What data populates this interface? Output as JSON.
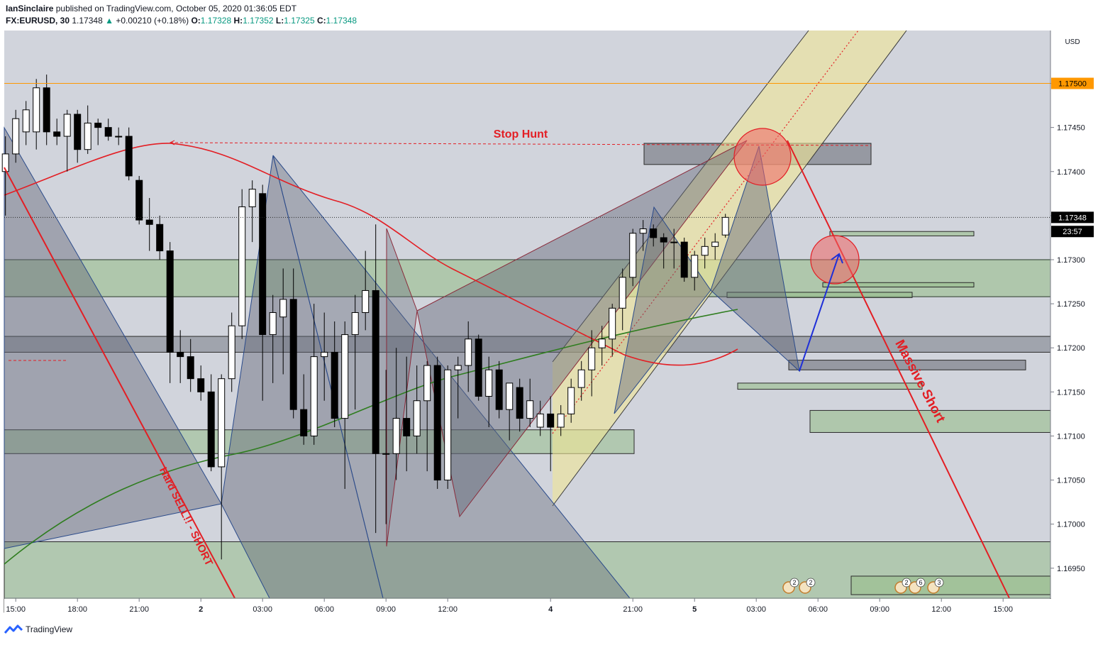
{
  "header": {
    "author": "IanSinclaire",
    "published": "published on TradingView.com, October 05, 2020 01:36:05 EDT"
  },
  "legend": {
    "symbol": "FX:EURUSD, 30",
    "last": "1.17348",
    "arrow": "▲",
    "change": "+0.00210 (+0.18%)",
    "o_label": "O:",
    "o": "1.17328",
    "h_label": "H:",
    "h": "1.17352",
    "l_label": "L:",
    "l": "1.17325",
    "c_label": "C:",
    "c": "1.17348"
  },
  "footer": {
    "brand": "TradingView",
    "logo_icon": "tradingview-logo-icon"
  },
  "colors": {
    "up": "#ffffff",
    "down": "#000000",
    "bg": "#d1d4dc",
    "red": "#e31e24",
    "orange": "#ff9800",
    "accent": "#089981"
  },
  "chart_data": {
    "type": "candlestick",
    "title": "",
    "currency": "USD",
    "ylim": [
      1.16916,
      1.1756
    ],
    "y_ticks": [
      "1.16950",
      "1.17000",
      "1.17050",
      "1.17100",
      "1.17150",
      "1.17200",
      "1.17250",
      "1.17300",
      "1.17350",
      "1.17400",
      "1.17450",
      "1.17500"
    ],
    "x_ticks": [
      {
        "label": "15:00",
        "bar": 1
      },
      {
        "label": "18:00",
        "bar": 7
      },
      {
        "label": "21:00",
        "bar": 13
      },
      {
        "label": "2",
        "bar": 19
      },
      {
        "label": "03:00",
        "bar": 25
      },
      {
        "label": "06:00",
        "bar": 31
      },
      {
        "label": "09:00",
        "bar": 37
      },
      {
        "label": "12:00",
        "bar": 43
      },
      {
        "label": "4",
        "bar": 53
      },
      {
        "label": "21:00",
        "bar": 61
      },
      {
        "label": "5",
        "bar": 67
      },
      {
        "label": "03:00",
        "bar": 73
      },
      {
        "label": "06:00",
        "bar": 79
      },
      {
        "label": "09:00",
        "bar": 85
      },
      {
        "label": "12:00",
        "bar": 91
      },
      {
        "label": "15:00",
        "bar": 97
      }
    ],
    "price_labels": [
      {
        "text": "1.17500",
        "price": 1.175,
        "bg": "#ff9800",
        "color": "#000000"
      },
      {
        "text": "1.17348",
        "price": 1.17348,
        "bg": "#000000",
        "color": "#ffffff"
      },
      {
        "text": "23:57",
        "price": 1.17332,
        "bg": "#000000",
        "color": "#ffffff"
      }
    ],
    "candles": [
      {
        "o": 1.174,
        "h": 1.1744,
        "l": 1.1735,
        "c": 1.1742
      },
      {
        "o": 1.1742,
        "h": 1.1747,
        "l": 1.1741,
        "c": 1.1746
      },
      {
        "o": 1.17445,
        "h": 1.1748,
        "l": 1.1743,
        "c": 1.1747
      },
      {
        "o": 1.17445,
        "h": 1.17505,
        "l": 1.17425,
        "c": 1.17495
      },
      {
        "o": 1.17495,
        "h": 1.1751,
        "l": 1.1743,
        "c": 1.17445
      },
      {
        "o": 1.17445,
        "h": 1.1746,
        "l": 1.1743,
        "c": 1.1744
      },
      {
        "o": 1.1744,
        "h": 1.1747,
        "l": 1.174,
        "c": 1.17465
      },
      {
        "o": 1.17465,
        "h": 1.1747,
        "l": 1.1741,
        "c": 1.17425
      },
      {
        "o": 1.17425,
        "h": 1.17475,
        "l": 1.1742,
        "c": 1.17455
      },
      {
        "o": 1.17455,
        "h": 1.1746,
        "l": 1.1743,
        "c": 1.1745
      },
      {
        "o": 1.1745,
        "h": 1.1746,
        "l": 1.17435,
        "c": 1.1744
      },
      {
        "o": 1.1744,
        "h": 1.1745,
        "l": 1.1743,
        "c": 1.1744
      },
      {
        "o": 1.1744,
        "h": 1.1745,
        "l": 1.1739,
        "c": 1.17395
      },
      {
        "o": 1.1739,
        "h": 1.17395,
        "l": 1.1734,
        "c": 1.17345
      },
      {
        "o": 1.17345,
        "h": 1.1737,
        "l": 1.1731,
        "c": 1.1734
      },
      {
        "o": 1.1734,
        "h": 1.1735,
        "l": 1.173,
        "c": 1.1731
      },
      {
        "o": 1.1731,
        "h": 1.1732,
        "l": 1.1716,
        "c": 1.17195
      },
      {
        "o": 1.17195,
        "h": 1.1722,
        "l": 1.1716,
        "c": 1.1719
      },
      {
        "o": 1.1719,
        "h": 1.1721,
        "l": 1.1715,
        "c": 1.17165
      },
      {
        "o": 1.17165,
        "h": 1.1718,
        "l": 1.1714,
        "c": 1.1715
      },
      {
        "o": 1.1715,
        "h": 1.1717,
        "l": 1.1706,
        "c": 1.17065
      },
      {
        "o": 1.17065,
        "h": 1.1717,
        "l": 1.1696,
        "c": 1.17165
      },
      {
        "o": 1.17165,
        "h": 1.1724,
        "l": 1.1715,
        "c": 1.17225
      },
      {
        "o": 1.17225,
        "h": 1.1738,
        "l": 1.1721,
        "c": 1.1736
      },
      {
        "o": 1.1736,
        "h": 1.1739,
        "l": 1.1732,
        "c": 1.1738
      },
      {
        "o": 1.17375,
        "h": 1.17385,
        "l": 1.1714,
        "c": 1.17215
      },
      {
        "o": 1.17215,
        "h": 1.1726,
        "l": 1.1716,
        "c": 1.1724
      },
      {
        "o": 1.17235,
        "h": 1.1729,
        "l": 1.1717,
        "c": 1.17255
      },
      {
        "o": 1.17255,
        "h": 1.1729,
        "l": 1.1712,
        "c": 1.1713
      },
      {
        "o": 1.1713,
        "h": 1.1717,
        "l": 1.1709,
        "c": 1.171
      },
      {
        "o": 1.171,
        "h": 1.1725,
        "l": 1.1709,
        "c": 1.1719
      },
      {
        "o": 1.1719,
        "h": 1.1724,
        "l": 1.1714,
        "c": 1.17195
      },
      {
        "o": 1.17195,
        "h": 1.1723,
        "l": 1.1711,
        "c": 1.1712
      },
      {
        "o": 1.1712,
        "h": 1.1723,
        "l": 1.1704,
        "c": 1.17215
      },
      {
        "o": 1.17215,
        "h": 1.1726,
        "l": 1.1713,
        "c": 1.1724
      },
      {
        "o": 1.1724,
        "h": 1.1731,
        "l": 1.1722,
        "c": 1.17265
      },
      {
        "o": 1.17265,
        "h": 1.1734,
        "l": 1.1699,
        "c": 1.1708
      },
      {
        "o": 1.1708,
        "h": 1.17175,
        "l": 1.17,
        "c": 1.1708
      },
      {
        "o": 1.1708,
        "h": 1.172,
        "l": 1.1705,
        "c": 1.1712
      },
      {
        "o": 1.1712,
        "h": 1.1719,
        "l": 1.1706,
        "c": 1.171
      },
      {
        "o": 1.171,
        "h": 1.1718,
        "l": 1.1708,
        "c": 1.1714
      },
      {
        "o": 1.1714,
        "h": 1.17185,
        "l": 1.1706,
        "c": 1.1718
      },
      {
        "o": 1.1718,
        "h": 1.1719,
        "l": 1.1704,
        "c": 1.1705
      },
      {
        "o": 1.1705,
        "h": 1.1718,
        "l": 1.1704,
        "c": 1.17175
      },
      {
        "o": 1.17175,
        "h": 1.1719,
        "l": 1.1712,
        "c": 1.1718
      },
      {
        "o": 1.1718,
        "h": 1.1723,
        "l": 1.1715,
        "c": 1.1721
      },
      {
        "o": 1.1721,
        "h": 1.17215,
        "l": 1.1714,
        "c": 1.17145
      },
      {
        "o": 1.17145,
        "h": 1.1719,
        "l": 1.1711,
        "c": 1.17175
      },
      {
        "o": 1.17175,
        "h": 1.17185,
        "l": 1.1712,
        "c": 1.1713
      },
      {
        "o": 1.1713,
        "h": 1.17155,
        "l": 1.17095,
        "c": 1.1716
      },
      {
        "o": 1.17155,
        "h": 1.17165,
        "l": 1.17105,
        "c": 1.1712
      },
      {
        "o": 1.1712,
        "h": 1.17165,
        "l": 1.1711,
        "c": 1.1714
      },
      {
        "o": 1.1711,
        "h": 1.1714,
        "l": 1.171,
        "c": 1.17125
      },
      {
        "o": 1.17125,
        "h": 1.17145,
        "l": 1.1706,
        "c": 1.1711
      },
      {
        "o": 1.1711,
        "h": 1.17135,
        "l": 1.171,
        "c": 1.17125
      },
      {
        "o": 1.17125,
        "h": 1.17165,
        "l": 1.17115,
        "c": 1.17155
      },
      {
        "o": 1.17155,
        "h": 1.17185,
        "l": 1.1714,
        "c": 1.17175
      },
      {
        "o": 1.17175,
        "h": 1.1722,
        "l": 1.17145,
        "c": 1.172
      },
      {
        "o": 1.172,
        "h": 1.17225,
        "l": 1.1718,
        "c": 1.1721
      },
      {
        "o": 1.1721,
        "h": 1.1725,
        "l": 1.1719,
        "c": 1.17245
      },
      {
        "o": 1.17245,
        "h": 1.1729,
        "l": 1.1722,
        "c": 1.1728
      },
      {
        "o": 1.1728,
        "h": 1.17335,
        "l": 1.1727,
        "c": 1.1733
      },
      {
        "o": 1.1733,
        "h": 1.17345,
        "l": 1.1731,
        "c": 1.17335
      },
      {
        "o": 1.17335,
        "h": 1.1734,
        "l": 1.17315,
        "c": 1.17325
      },
      {
        "o": 1.17325,
        "h": 1.1733,
        "l": 1.1729,
        "c": 1.1732
      },
      {
        "o": 1.1732,
        "h": 1.17335,
        "l": 1.1729,
        "c": 1.1732
      },
      {
        "o": 1.1732,
        "h": 1.17325,
        "l": 1.17275,
        "c": 1.1728
      },
      {
        "o": 1.1728,
        "h": 1.1731,
        "l": 1.17265,
        "c": 1.17305
      },
      {
        "o": 1.17305,
        "h": 1.17325,
        "l": 1.1729,
        "c": 1.17315
      },
      {
        "o": 1.17315,
        "h": 1.1733,
        "l": 1.173,
        "c": 1.1732
      },
      {
        "o": 1.17328,
        "h": 1.17352,
        "l": 1.17325,
        "c": 1.17348
      }
    ],
    "annotations": [
      {
        "text": "Stop Hunt",
        "color": "#e31e24"
      },
      {
        "text": "Hard SELL!! - SHORT",
        "color": "#e31e24"
      },
      {
        "text": "Massive Short",
        "color": "#e31e24"
      }
    ],
    "event_badges": [
      "2",
      "2",
      "2",
      "6",
      "3"
    ]
  }
}
